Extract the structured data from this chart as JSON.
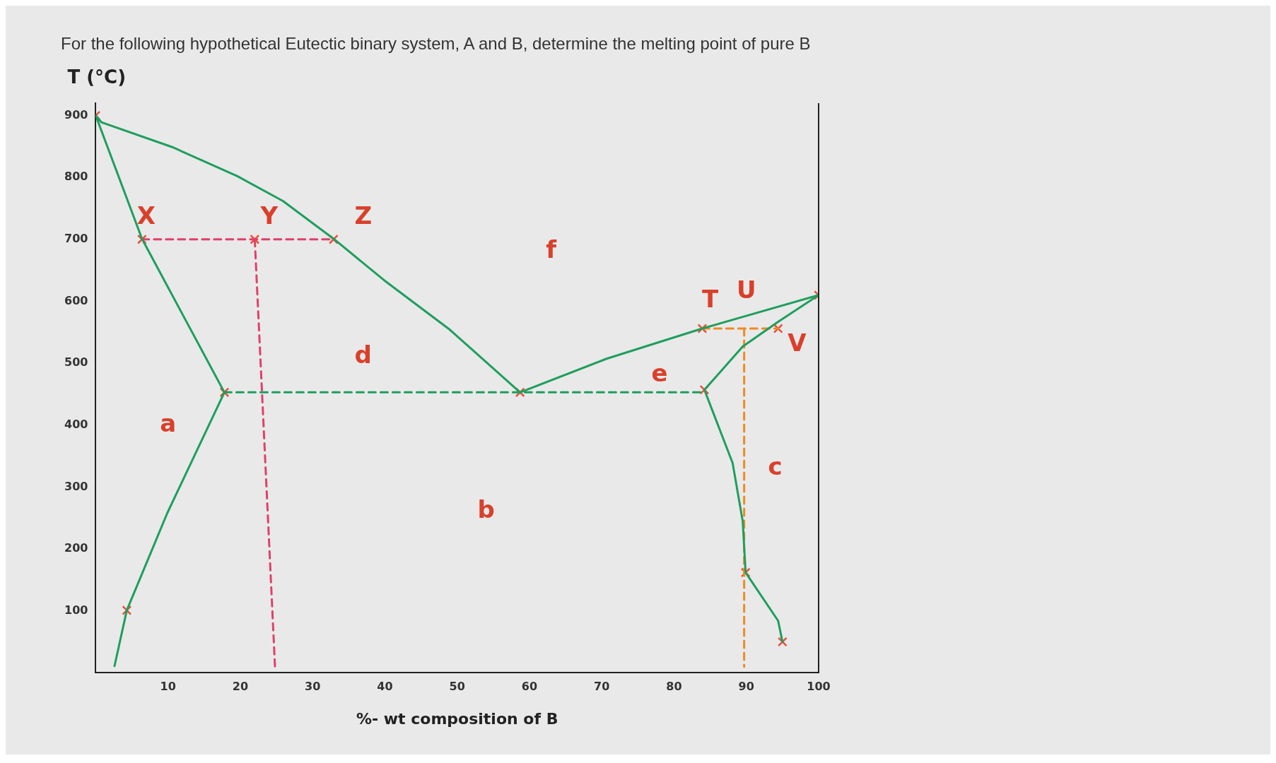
{
  "chart_data": {
    "type": "line",
    "title": "For the following hypothetical Eutectic binary system, A and B, determine the melting point of pure B",
    "xlabel": "%- wt composition of B",
    "ylabel": "T (°C)",
    "xlim": [
      0,
      100
    ],
    "xticks": [
      10,
      20,
      30,
      40,
      50,
      60,
      70,
      80,
      90,
      100
    ],
    "ylim": [
      0,
      920
    ],
    "yticks": [
      100,
      200,
      300,
      400,
      500,
      600,
      700,
      800,
      900
    ],
    "legend": false,
    "grid": false,
    "line_style": "solid",
    "marker": "none",
    "series": [
      {
        "color": "#1e9e5e",
        "x": [
          0,
          0.8,
          10.6,
          19.6,
          25.9,
          32.9,
          39.9,
          49,
          58.7
        ],
        "values": [
          900,
          889,
          849,
          802,
          762,
          701,
          634,
          554,
          453
        ]
      },
      {
        "color": "#1e9e5e",
        "x": [
          0,
          6.4,
          17.8,
          9.9,
          4.3,
          2.6
        ],
        "values": [
          900,
          701,
          453,
          258,
          101,
          11
        ]
      },
      {
        "color": "#1e9e5e",
        "x": [
          58.7,
          70.6,
          83.9,
          100
        ],
        "values": [
          453,
          507,
          556,
          610
        ]
      },
      {
        "color": "#1e9e5e",
        "x": [
          100,
          94.4,
          89.5,
          84.2,
          88.1,
          89.5,
          89.9,
          94.4,
          95
        ],
        "values": [
          610,
          567,
          527,
          457,
          339,
          245,
          162,
          84,
          50
        ]
      },
      {
        "color": "#1e9e5e",
        "line_style": "dashed",
        "x": [
          17.8,
          84.2
        ],
        "values": [
          453,
          453
        ]
      },
      {
        "color": "#e0406a",
        "line_style": "dashed",
        "x": [
          6.4,
          32.9
        ],
        "values": [
          700,
          700
        ]
      },
      {
        "color": "#e0406a",
        "line_style": "dashed",
        "x": [
          22,
          24.8
        ],
        "values": [
          700,
          10
        ]
      },
      {
        "color": "#f08a24",
        "line_style": "dashed",
        "x": [
          83.9,
          94.4
        ],
        "values": [
          556,
          556
        ]
      },
      {
        "color": "#f08a24",
        "line_style": "dashed",
        "x": [
          89.7,
          89.7
        ],
        "values": [
          556,
          10
        ]
      },
      {
        "type": "scatter",
        "marker": "cross",
        "color": "#e8503a",
        "x": [
          0,
          100,
          6.4,
          22,
          32.9,
          17.8,
          58.7,
          84.2,
          83.9,
          94.4,
          89.9,
          95,
          4.3
        ],
        "values": [
          900,
          610,
          700,
          700,
          700,
          453,
          453,
          457,
          556,
          556,
          162,
          50,
          101
        ]
      }
    ],
    "annotations": [
      "a",
      "b",
      "c",
      "d",
      "e",
      "f",
      "X",
      "Y",
      "Z",
      "T",
      "U",
      "V"
    ]
  }
}
